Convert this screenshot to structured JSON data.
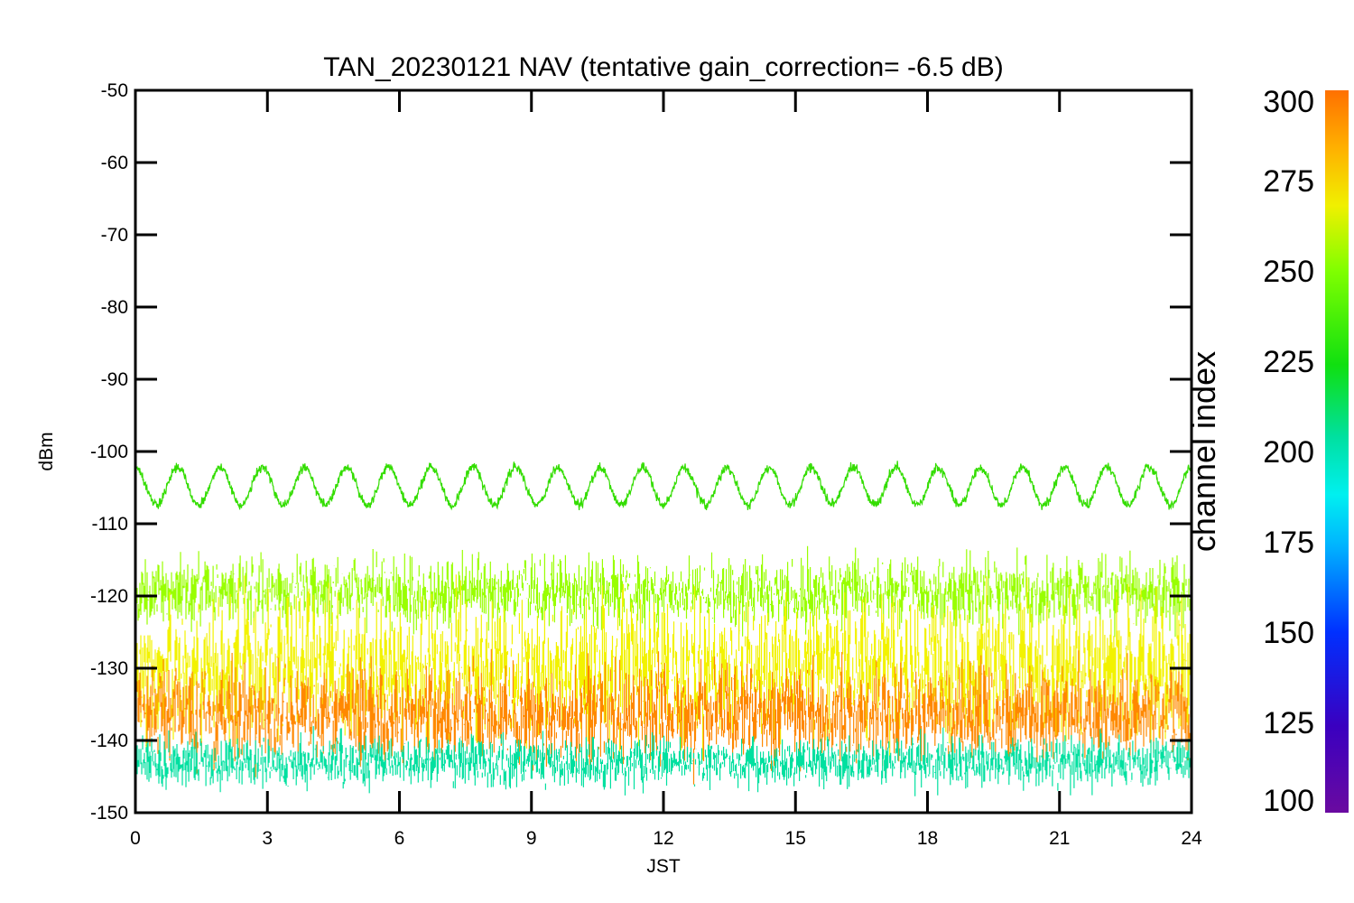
{
  "chart_data": {
    "type": "line",
    "title": "TAN_20230121 NAV (tentative gain_correction= -6.5 dB)",
    "xlabel": "JST",
    "ylabel": "dBm",
    "xlim": [
      0,
      24
    ],
    "ylim": [
      -150,
      -50
    ],
    "x_ticks": [
      0,
      3,
      6,
      9,
      12,
      15,
      18,
      21,
      24
    ],
    "y_ticks": [
      -50,
      -60,
      -70,
      -80,
      -90,
      -100,
      -110,
      -120,
      -130,
      -140,
      -150
    ],
    "colorbar": {
      "label": "channel index",
      "range": [
        100,
        300
      ],
      "ticks": [
        100,
        125,
        150,
        175,
        200,
        225,
        250,
        275,
        300
      ],
      "colormap": "rainbow"
    },
    "series": [
      {
        "channel": 245,
        "color": "#33dd00",
        "mean": -104.8,
        "amplitude": 2.6,
        "period_hours": 0.96,
        "noise": 0.35
      }
    ],
    "noise_bands": [
      {
        "channel": 258,
        "color": "#99ff00",
        "center": -119.5,
        "spread": 2.5
      },
      {
        "channel": 272,
        "color": "#f2f200",
        "center": -130,
        "spread": 5
      },
      {
        "channel": 292,
        "color": "#ff8800",
        "center": -136.5,
        "spread": 3.6
      },
      {
        "channel": 185,
        "color": "#00e0a0",
        "center": -143,
        "spread": 1.8
      }
    ],
    "colors": {
      "background": "#ffffff",
      "axis": "#000000"
    }
  }
}
